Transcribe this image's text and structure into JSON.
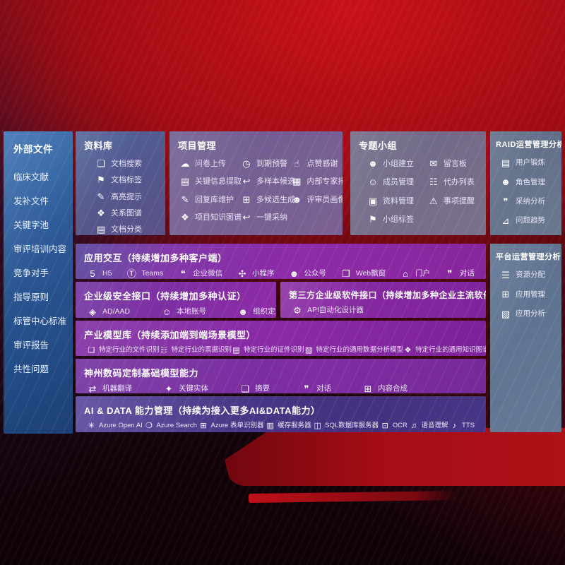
{
  "colors": {
    "background_red": "#a30c13",
    "sidebar_blue": "#2a5693",
    "row_purple": "#8e2ca8",
    "row_indigo": "#473586",
    "box_gray": "#6a788f"
  },
  "left_sidebar": {
    "title": "外部文件",
    "items": [
      "临床文献",
      "发补文件",
      "关键字池",
      "审评培训内容",
      "竞争对手",
      "指导原则",
      "标管中心标准",
      "审评报告",
      "共性问题"
    ]
  },
  "repository": {
    "title": "资料库",
    "items": [
      {
        "label": "文档搜索",
        "icon": "doc-search"
      },
      {
        "label": "文档标签",
        "icon": "doc-tag"
      },
      {
        "label": "高亮提示",
        "icon": "highlight"
      },
      {
        "label": "关系图谱",
        "icon": "relation-graph"
      },
      {
        "label": "文档分类",
        "icon": "doc-classify"
      }
    ]
  },
  "project_mgmt": {
    "title": "项目管理",
    "items": [
      {
        "label": "问卷上传",
        "icon": "cloud-upload"
      },
      {
        "label": "到期预警",
        "icon": "alarm"
      },
      {
        "label": "点赞感谢",
        "icon": "thumbs-up"
      },
      {
        "label": "关键信息提取",
        "icon": "info-extract"
      },
      {
        "label": "多样本候选",
        "icon": "multi-sample"
      },
      {
        "label": "内部专家排名",
        "icon": "expert-rank"
      },
      {
        "label": "回复库维护",
        "icon": "reply-edit"
      },
      {
        "label": "多候选生成",
        "icon": "multi-generate"
      },
      {
        "label": "评审员画像",
        "icon": "reviewer-profile"
      },
      {
        "label": "项目知识图谱",
        "icon": "knowledge-graph"
      },
      {
        "label": "一键采纳",
        "icon": "one-click-adopt"
      }
    ]
  },
  "topic_groups": {
    "title": "专题小组",
    "items": [
      {
        "label": "小组建立",
        "icon": "group-create"
      },
      {
        "label": "留言板",
        "icon": "message-board"
      },
      {
        "label": "成员管理",
        "icon": "member-manage"
      },
      {
        "label": "代办列表",
        "icon": "todo-list"
      },
      {
        "label": "资料管理",
        "icon": "material-manage"
      },
      {
        "label": "事项提醒",
        "icon": "reminder"
      },
      {
        "label": "小组标签",
        "icon": "group-tag"
      }
    ]
  },
  "raid_analysis": {
    "title": "RAID运营管理分析",
    "items": [
      {
        "label": "用户锻炼",
        "icon": "user-train"
      },
      {
        "label": "角色管理",
        "icon": "role-manage"
      },
      {
        "label": "采纳分析",
        "icon": "adopt-analysis"
      },
      {
        "label": "问题趋势",
        "icon": "issue-trend"
      }
    ]
  },
  "platform_analysis": {
    "title": "平台运营管理分析",
    "items": [
      {
        "label": "资源分配",
        "icon": "resource-alloc"
      },
      {
        "label": "应用管理",
        "icon": "app-manage"
      },
      {
        "label": "应用分析",
        "icon": "app-analysis"
      }
    ]
  },
  "app_interaction": {
    "title": "应用交互（持续增加多种客户端）",
    "items": [
      {
        "label": "H5",
        "icon": "h5"
      },
      {
        "label": "Teams",
        "icon": "teams"
      },
      {
        "label": "企业微信",
        "icon": "wecom"
      },
      {
        "label": "小程序",
        "icon": "miniprogram"
      },
      {
        "label": "公众号",
        "icon": "official-account"
      },
      {
        "label": "Web飘窗",
        "icon": "web-popup"
      },
      {
        "label": "门户",
        "icon": "portal"
      },
      {
        "label": "对话",
        "icon": "chat"
      }
    ]
  },
  "security_interface": {
    "title": "企业级安全接口（持续增加多种认证）",
    "items": [
      {
        "label": "AD/AAD",
        "icon": "ad-aad"
      },
      {
        "label": "本地账号",
        "icon": "local-account"
      },
      {
        "label": "组织定义",
        "icon": "org-define"
      }
    ]
  },
  "third_party_interface": {
    "title": "第三方企业级软件接口（持续增加多种企业主流软件接口）",
    "items": [
      {
        "label": "API自动化设计器",
        "icon": "api-designer"
      }
    ]
  },
  "industry_models": {
    "title": "产业模型库（持续添加端到端场景模型）",
    "items": [
      {
        "label": "特定行业的文件识别",
        "icon": "file-recog"
      },
      {
        "label": "特定行业的票据识别",
        "icon": "bill-recog"
      },
      {
        "label": "特定行业的证件识别",
        "icon": "cert-recog"
      },
      {
        "label": "特定行业的通用数据分析模型",
        "icon": "data-model"
      },
      {
        "label": "特定行业的通用知识图谱模型",
        "icon": "kg-model"
      }
    ]
  },
  "digital_china_models": {
    "title": "神州数码定制基础模型能力",
    "items": [
      {
        "label": "机器翻译",
        "icon": "translate"
      },
      {
        "label": "关键实体",
        "icon": "key-entity"
      },
      {
        "label": "摘要",
        "icon": "summary"
      },
      {
        "label": "对话",
        "icon": "dialog"
      },
      {
        "label": "内容合成",
        "icon": "content-gen"
      }
    ]
  },
  "ai_data_mgmt": {
    "title": "AI & DATA 能力管理（持续为接入更多AI&DATA能力）",
    "items": [
      {
        "label": "Azure Open AI",
        "icon": "azure-openai"
      },
      {
        "label": "Azure Search",
        "icon": "azure-search"
      },
      {
        "label": "Azure 表单识别器",
        "icon": "azure-form"
      },
      {
        "label": "缓存服务器",
        "icon": "cache-server"
      },
      {
        "label": "SQL数据库服务器",
        "icon": "sql-server"
      },
      {
        "label": "OCR",
        "icon": "ocr"
      },
      {
        "label": "语音理解",
        "icon": "speech"
      },
      {
        "label": "TTS",
        "icon": "tts"
      }
    ]
  },
  "icons": {
    "doc-search": "❏",
    "doc-tag": "⚑",
    "highlight": "✎",
    "relation-graph": "❖",
    "doc-classify": "▤",
    "cloud-upload": "☁",
    "alarm": "◷",
    "thumbs-up": "☝",
    "info-extract": "▤",
    "multi-sample": "↩",
    "expert-rank": "▦",
    "reply-edit": "✎",
    "multi-generate": "⊞",
    "reviewer-profile": "☻",
    "knowledge-graph": "❖",
    "one-click-adopt": "↩",
    "group-create": "☻",
    "message-board": "✉",
    "member-manage": "☺",
    "todo-list": "☷",
    "material-manage": "▣",
    "reminder": "⚠",
    "group-tag": "⚑",
    "user-train": "▤",
    "role-manage": "☻",
    "adopt-analysis": "❞",
    "issue-trend": "⊿",
    "resource-alloc": "☰",
    "app-manage": "⊞",
    "app-analysis": "▧",
    "h5": "5",
    "teams": "Ⓣ",
    "wecom": "❝",
    "miniprogram": "✣",
    "official-account": "☻",
    "web-popup": "❐",
    "portal": "⌂",
    "chat": "❞",
    "ad-aad": "◈",
    "local-account": "☺",
    "org-define": "☻",
    "api-designer": "⚙",
    "file-recog": "❏",
    "bill-recog": "☷",
    "cert-recog": "▤",
    "data-model": "▧",
    "kg-model": "❖",
    "translate": "⇄",
    "key-entity": "✦",
    "summary": "❏",
    "dialog": "❞",
    "content-gen": "⊞",
    "azure-openai": "✳",
    "azure-search": "❍",
    "azure-form": "⊞",
    "cache-server": "▥",
    "sql-server": "◫",
    "ocr": "⊡",
    "speech": "♫",
    "tts": "♪"
  }
}
